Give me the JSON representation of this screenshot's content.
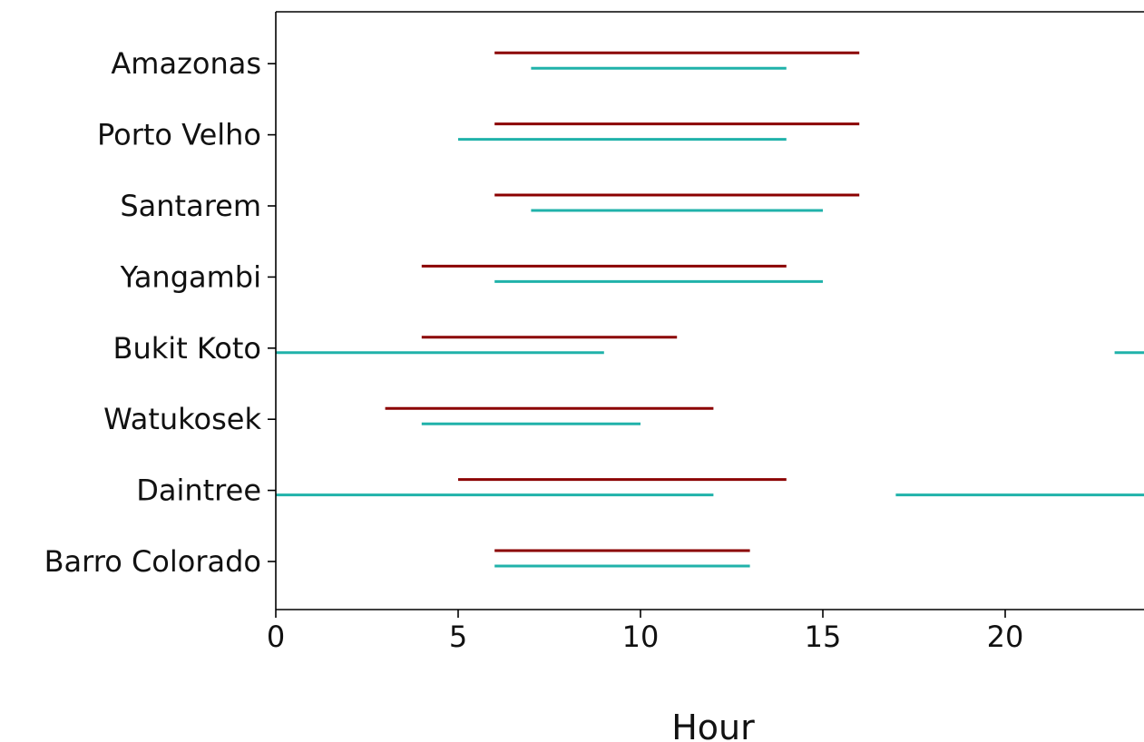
{
  "chart_data": {
    "type": "interval",
    "xlabel": "Hour",
    "xlim": [
      0,
      24
    ],
    "xticks": [
      0,
      5,
      10,
      15,
      20
    ],
    "categories": [
      "Barro Colorado",
      "Daintree",
      "Watukosek",
      "Bukit Koto",
      "Yangambi",
      "Santarem",
      "Porto Velho",
      "Amazonas"
    ],
    "series": [
      {
        "color": "#8b0000",
        "intervals": [
          [
            [
              6,
              13
            ]
          ],
          [
            [
              5,
              14
            ]
          ],
          [
            [
              3,
              12
            ]
          ],
          [
            [
              4,
              11
            ]
          ],
          [
            [
              4,
              14
            ]
          ],
          [
            [
              6,
              16
            ]
          ],
          [
            [
              6,
              16
            ]
          ],
          [
            [
              6,
              16
            ]
          ]
        ]
      },
      {
        "color": "#20b2aa",
        "intervals": [
          [
            [
              6,
              13
            ]
          ],
          [
            [
              0,
              12
            ],
            [
              17,
              24
            ]
          ],
          [
            [
              4,
              10
            ]
          ],
          [
            [
              0,
              9
            ],
            [
              23,
              24
            ]
          ],
          [
            [
              6,
              15
            ]
          ],
          [
            [
              7,
              15
            ]
          ],
          [
            [
              5,
              14
            ]
          ],
          [
            [
              7,
              14
            ]
          ]
        ]
      }
    ]
  }
}
